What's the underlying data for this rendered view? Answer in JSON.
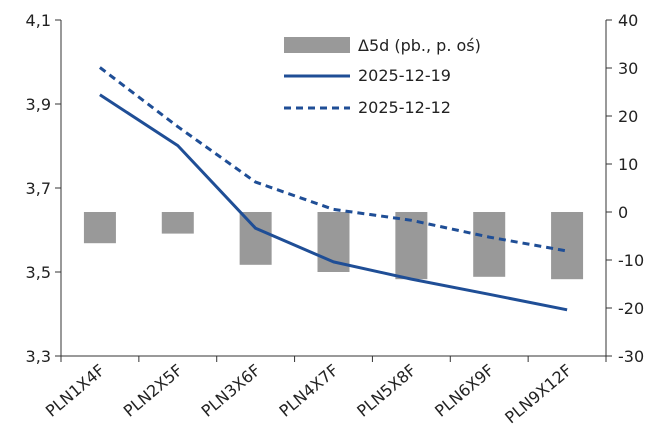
{
  "chart_data": {
    "type": "bar+line",
    "categories": [
      "PLN1X4F",
      "PLN2X5F",
      "PLN3X6F",
      "PLN4X7F",
      "PLN5X8F",
      "PLN6X9F",
      "PLN9X12F"
    ],
    "bar_series": {
      "name": "Δ5d (pb., p. oś)",
      "axis": "right",
      "color": "#999999",
      "values": [
        -6.5,
        -4.5,
        -11,
        -12.5,
        -14,
        -13.5,
        -14
      ]
    },
    "line_series": [
      {
        "name": "2025-12-19",
        "axis": "left",
        "color": "#1f4e96",
        "style": "solid",
        "values": [
          3.922,
          3.801,
          3.604,
          3.524,
          3.483,
          3.447,
          3.41
        ]
      },
      {
        "name": "2025-12-12",
        "axis": "left",
        "color": "#1f4e96",
        "style": "dashed",
        "values": [
          3.987,
          3.846,
          3.714,
          3.649,
          3.623,
          3.583,
          3.55
        ]
      }
    ],
    "y_left": {
      "min": 3.3,
      "max": 4.1,
      "ticks": [
        "3,3",
        "3,5",
        "3,7",
        "3,9",
        "4,1"
      ],
      "tick_values": [
        3.3,
        3.5,
        3.7,
        3.9,
        4.1
      ]
    },
    "y_right": {
      "min": -30,
      "max": 40,
      "ticks": [
        "-30",
        "-20",
        "-10",
        "0",
        "10",
        "20",
        "30",
        "40"
      ],
      "tick_values": [
        -30,
        -20,
        -10,
        0,
        10,
        20,
        30,
        40
      ]
    },
    "legend": {
      "placement": "top-right",
      "entries": [
        "Δ5d (pb., p. oś)",
        "2025-12-19",
        "2025-12-12"
      ]
    },
    "grid": false
  }
}
